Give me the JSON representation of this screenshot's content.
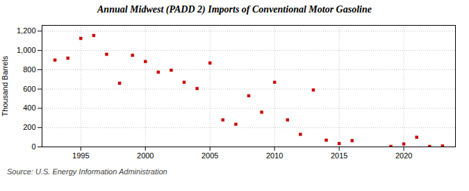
{
  "chart_data": {
    "type": "scatter",
    "title": "Annual Midwest (PADD 2) Imports of Conventional Motor Gasoline",
    "ylabel": "Thousand Barrels",
    "annotation": "Source: U.S. Energy Information Administration",
    "x": [
      1993,
      1994,
      1995,
      1996,
      1997,
      1998,
      1999,
      2000,
      2001,
      2002,
      2003,
      2004,
      2005,
      2006,
      2007,
      2008,
      2009,
      2010,
      2011,
      2012,
      2013,
      2014,
      2015,
      2016,
      2019,
      2020,
      2021,
      2022,
      2023
    ],
    "values": [
      900,
      920,
      1125,
      1155,
      960,
      660,
      950,
      885,
      775,
      795,
      670,
      605,
      870,
      280,
      235,
      530,
      360,
      670,
      280,
      130,
      590,
      70,
      35,
      65,
      5,
      30,
      100,
      5,
      10
    ],
    "color": "#cc0000",
    "marker": "square",
    "xlim": [
      1992,
      2024
    ],
    "ylim": [
      0,
      1260
    ],
    "xticks": [
      1995,
      2000,
      2005,
      2010,
      2015,
      2020
    ],
    "yticks": [
      0,
      200,
      400,
      600,
      800,
      {
        "value": 1000,
        "label": "1,000"
      },
      {
        "value": 1200,
        "label": "1,200"
      }
    ],
    "grid": true
  }
}
